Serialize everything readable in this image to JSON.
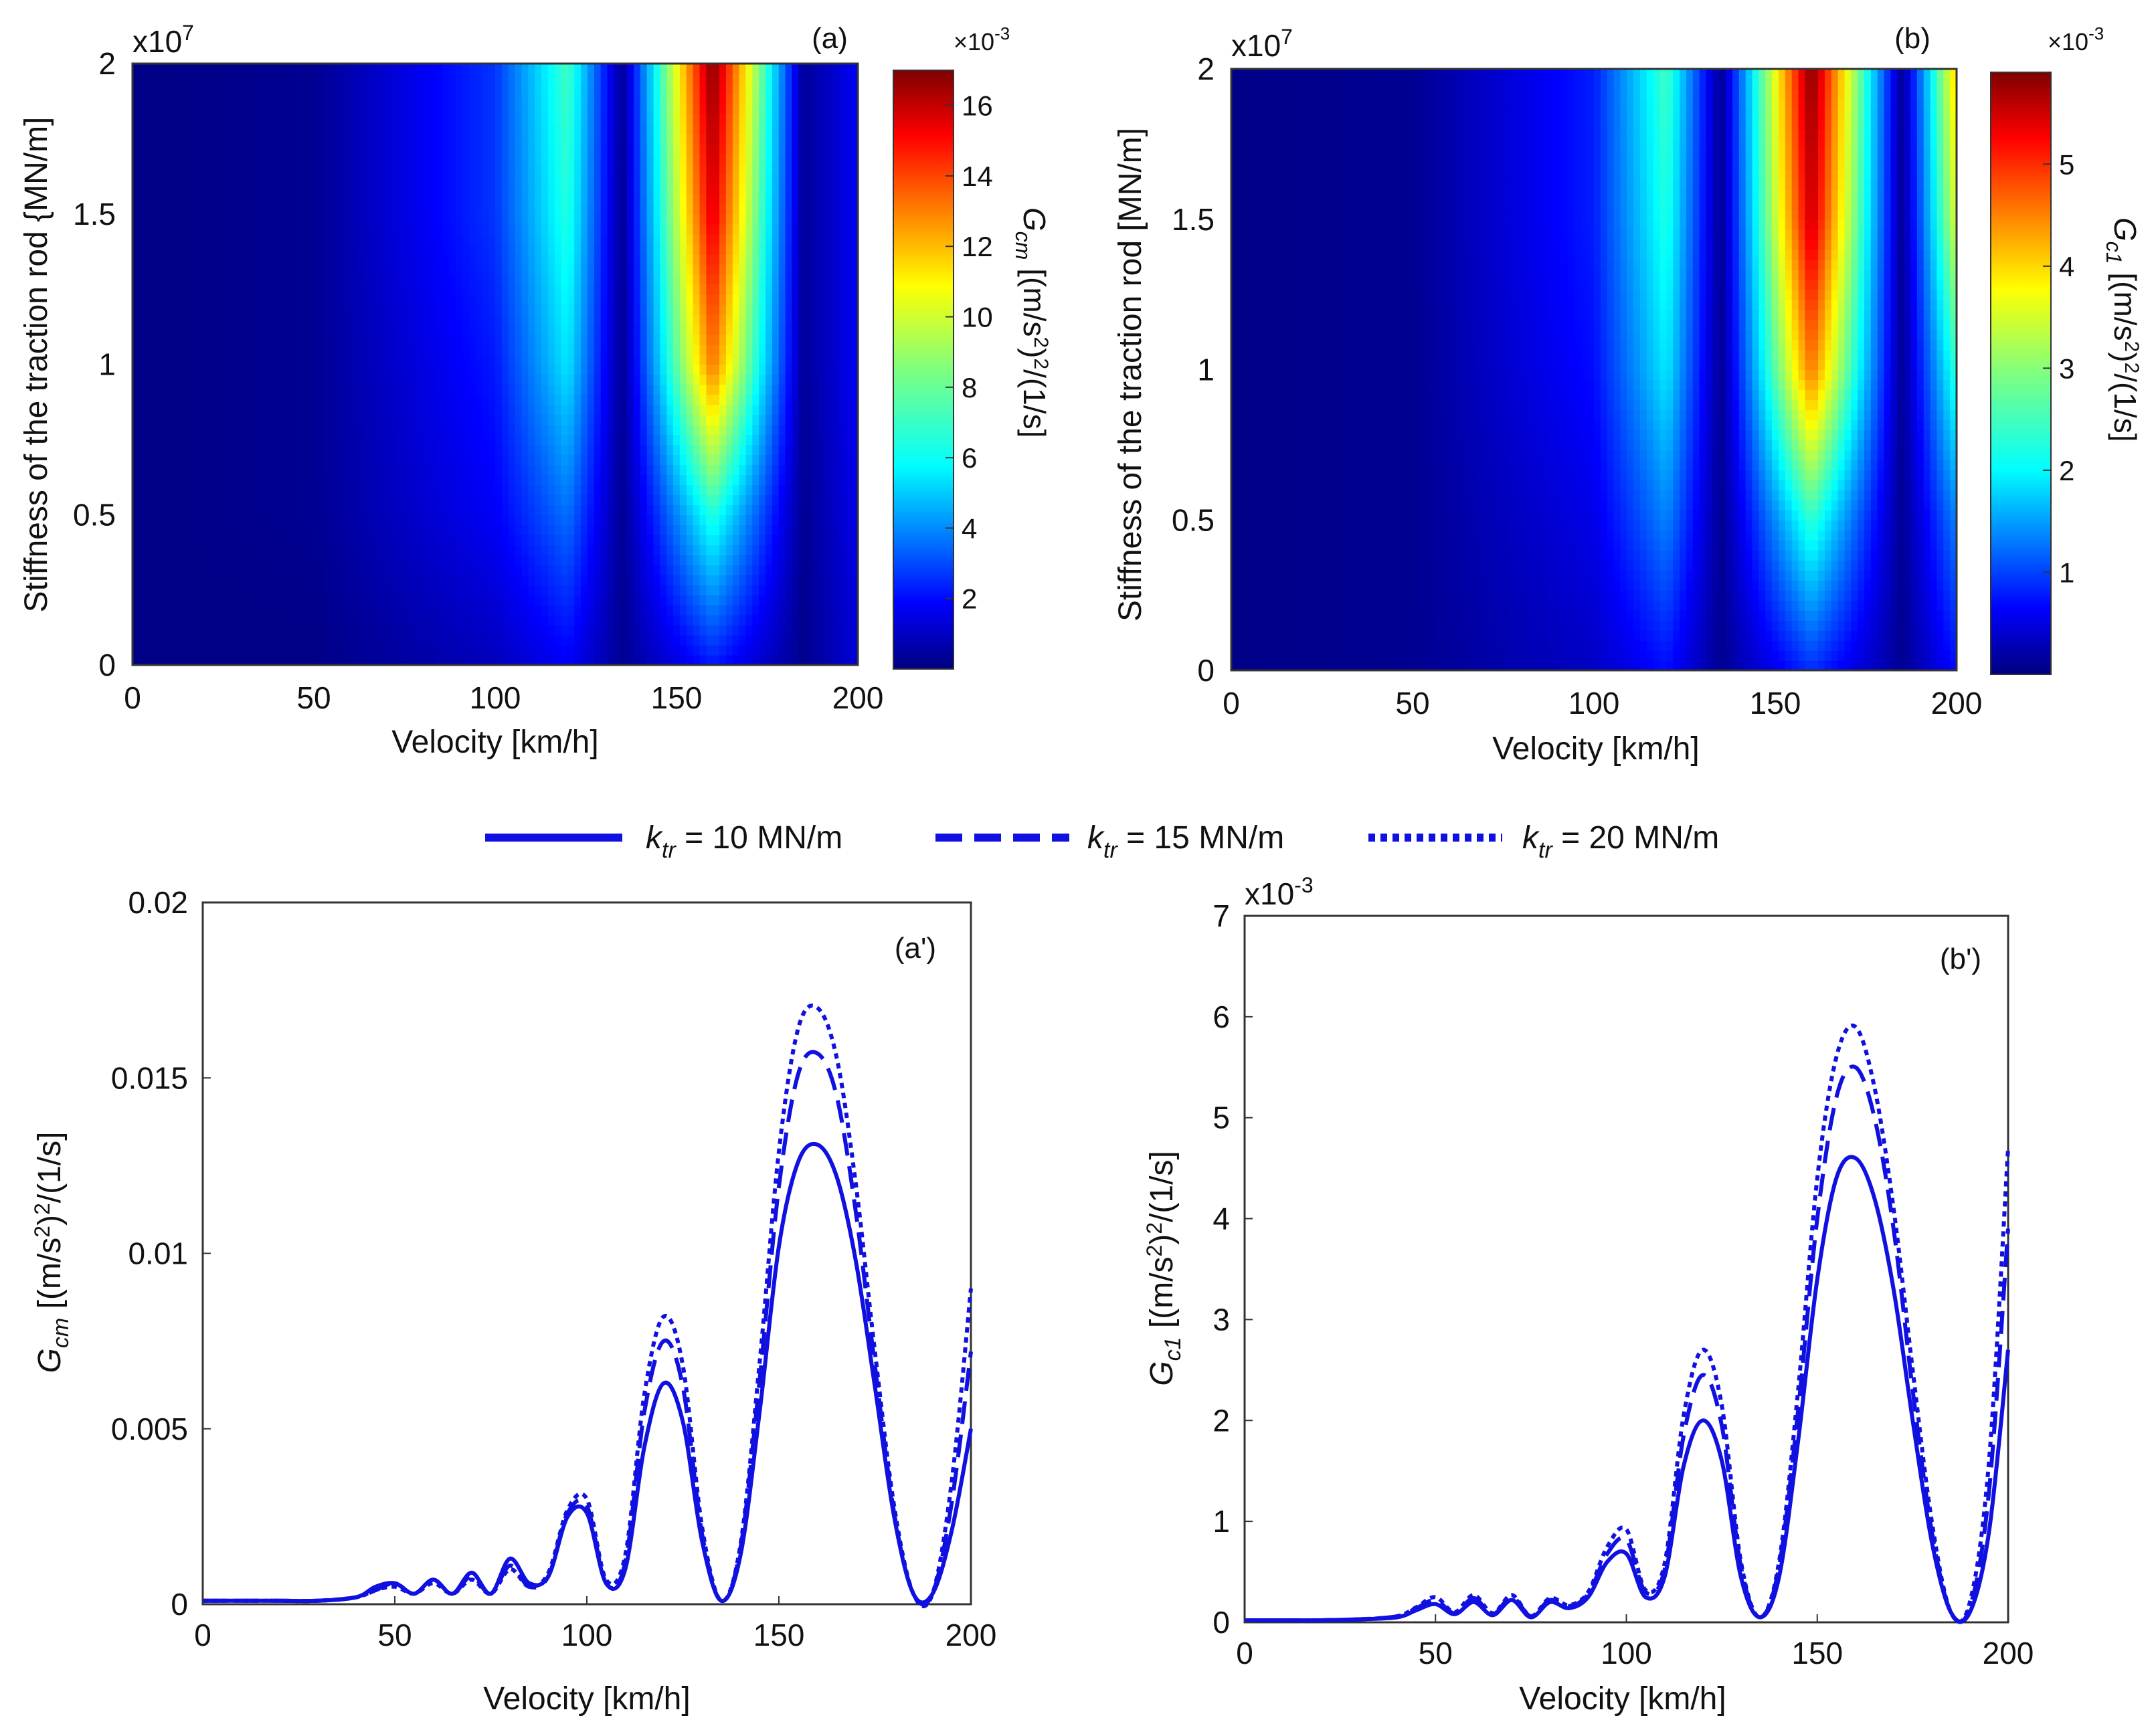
{
  "figure": {
    "colormap": "jet",
    "line_color": "#1010e0",
    "legend": {
      "placement": "center, between top and bottom rows",
      "entries": [
        {
          "symbol": "k",
          "subscript": "tr",
          "suffix": " = 10 MN/m",
          "style": "solid"
        },
        {
          "symbol": "k",
          "subscript": "tr",
          "suffix": " = 15 MN/m",
          "style": "dashed"
        },
        {
          "symbol": "k",
          "subscript": "tr",
          "suffix": " = 20 MN/m",
          "style": "dotted"
        }
      ]
    }
  },
  "panels": {
    "a": {
      "panel_label": "(a)",
      "exponent_label": "x10",
      "exponent_power": "7",
      "xlabel": "Velocity [km/h]",
      "ylabel": "Stiffness of the traction rod {MN/m]",
      "xticks": [
        "0",
        "50",
        "100",
        "150",
        "200"
      ],
      "yticks": [
        "0",
        "0.5",
        "1",
        "1.5",
        "2"
      ],
      "colorbar": {
        "multiplier_base": "×10",
        "multiplier_power": "-3",
        "label_symbol": "G",
        "label_sub": "cm",
        "label_units": " [(m/s",
        "label_units_sup": "2",
        "label_units_mid": ")",
        "label_units_sup2": "2",
        "label_units_end": "/(1/s]",
        "ticks": [
          "2",
          "4",
          "6",
          "8",
          "10",
          "12",
          "14",
          "16"
        ]
      }
    },
    "b": {
      "panel_label": "(b)",
      "exponent_label": "x10",
      "exponent_power": "7",
      "xlabel": "Velocity [km/h]",
      "ylabel": "Stiffness of the traction rod [MN/m]",
      "xticks": [
        "0",
        "50",
        "100",
        "150",
        "200"
      ],
      "yticks": [
        "0",
        "0.5",
        "1",
        "1.5",
        "2"
      ],
      "colorbar": {
        "multiplier_base": "×10",
        "multiplier_power": "-3",
        "label_symbol": "G",
        "label_sub": "c1",
        "label_units": " [(m/s",
        "label_units_sup": "2",
        "label_units_mid": ")",
        "label_units_sup2": "2",
        "label_units_end": "/(1/s]",
        "ticks": [
          "1",
          "2",
          "3",
          "4",
          "5"
        ]
      }
    },
    "a_prime": {
      "panel_label": "(a')",
      "xlabel": "Velocity [km/h]",
      "ylabel_symbol": "G",
      "ylabel_sub": "cm",
      "ylabel_units": " [(m/s",
      "ylabel_units_sup": "2",
      "ylabel_units_mid": ")",
      "ylabel_units_sup2": "2",
      "ylabel_units_end": "/(1/s]",
      "xticks": [
        "0",
        "50",
        "100",
        "150",
        "200"
      ],
      "yticks": [
        "0",
        "0.005",
        "0.01",
        "0.015",
        "0.02"
      ]
    },
    "b_prime": {
      "panel_label": "(b')",
      "exponent_label": "x10",
      "exponent_power": "-3",
      "xlabel": "Velocity [km/h]",
      "ylabel_symbol": "G",
      "ylabel_sub": "c1",
      "ylabel_units": " [(m/s",
      "ylabel_units_sup": "2",
      "ylabel_units_mid": ")",
      "ylabel_units_sup2": "2",
      "ylabel_units_end": "/(1/s]",
      "xticks": [
        "0",
        "50",
        "100",
        "150",
        "200"
      ],
      "yticks": [
        "0",
        "1",
        "2",
        "3",
        "4",
        "5",
        "6",
        "7"
      ]
    }
  },
  "chart_data": [
    {
      "id": "a",
      "type": "heatmap",
      "x_range": [
        0,
        200
      ],
      "y_range": [
        0,
        20000000
      ],
      "y_multiplier": "x10^7",
      "colorbar_range": [
        0,
        0.017
      ],
      "colorbar_multiplier": "x10^-3",
      "colormap": "jet",
      "x": [
        0,
        50,
        100,
        120,
        135,
        160,
        185,
        200
      ],
      "y": [
        0,
        5000000,
        10000000,
        15000000,
        20000000
      ],
      "values": [
        [
          0.0001,
          0.0001,
          0.001,
          0.002,
          0.0003,
          0.0025,
          0.0002,
          0.0015
        ],
        [
          0.0001,
          0.0003,
          0.002,
          0.004,
          0.0003,
          0.007,
          0.0003,
          0.0018
        ],
        [
          0.0001,
          0.0003,
          0.0025,
          0.006,
          0.0003,
          0.013,
          0.0004,
          0.002
        ],
        [
          0.0001,
          0.0003,
          0.003,
          0.007,
          0.0003,
          0.0155,
          0.0004,
          0.002
        ],
        [
          0.0001,
          0.0003,
          0.003,
          0.0075,
          0.0003,
          0.017,
          0.0004,
          0.002
        ]
      ]
    },
    {
      "id": "b",
      "type": "heatmap",
      "x_range": [
        0,
        200
      ],
      "y_range": [
        0,
        20000000
      ],
      "y_multiplier": "x10^7",
      "colorbar_range": [
        0,
        0.0059
      ],
      "colorbar_multiplier": "x10^-3",
      "colormap": "jet",
      "x": [
        0,
        50,
        100,
        120,
        135,
        160,
        185,
        200
      ],
      "y": [
        0,
        5000000,
        10000000,
        15000000,
        20000000
      ],
      "values": [
        [
          5e-05,
          0.0001,
          0.0004,
          0.0008,
          0.0001,
          0.001,
          0.0001,
          0.0008
        ],
        [
          5e-05,
          0.0001,
          0.0006,
          0.0015,
          0.0001,
          0.0025,
          0.0001,
          0.0015
        ],
        [
          5e-05,
          0.0001,
          0.0008,
          0.0021,
          0.0001,
          0.0045,
          0.0001,
          0.0025
        ],
        [
          5e-05,
          0.0001,
          0.0009,
          0.0024,
          0.0001,
          0.0055,
          0.0001,
          0.0035
        ],
        [
          5e-05,
          0.0001,
          0.0009,
          0.0026,
          0.0001,
          0.0059,
          0.0001,
          0.004
        ]
      ]
    },
    {
      "id": "a_prime",
      "type": "line",
      "xlim": [
        0,
        200
      ],
      "ylim": [
        0,
        0.02
      ],
      "x": [
        0,
        10,
        20,
        30,
        40,
        45,
        50,
        55,
        60,
        65,
        70,
        75,
        80,
        85,
        90,
        95,
        100,
        105,
        110,
        115,
        120,
        125,
        130,
        135,
        140,
        145,
        150,
        155,
        160,
        165,
        170,
        175,
        180,
        185,
        190,
        195,
        200
      ],
      "series": [
        {
          "name": "k_tr = 10 MN/m",
          "style": "solid",
          "values": [
            0.0001,
            0.0001,
            0.0001,
            0.0001,
            0.0002,
            0.0005,
            0.0006,
            0.0003,
            0.0007,
            0.0003,
            0.0009,
            0.0003,
            0.0013,
            0.0006,
            0.0008,
            0.0025,
            0.0026,
            0.0006,
            0.001,
            0.0045,
            0.0063,
            0.0052,
            0.0018,
            0.0001,
            0.0014,
            0.0055,
            0.0102,
            0.0126,
            0.0131,
            0.0122,
            0.0098,
            0.0062,
            0.0025,
            0.0003,
            0.0003,
            0.0021,
            0.005
          ]
        },
        {
          "name": "k_tr = 15 MN/m",
          "style": "dashed",
          "values": [
            0.0001,
            0.0001,
            0.0001,
            0.0001,
            0.0002,
            0.0004,
            0.0006,
            0.0003,
            0.0007,
            0.0003,
            0.0008,
            0.0003,
            0.0011,
            0.0005,
            0.0008,
            0.0026,
            0.0028,
            0.0006,
            0.0012,
            0.0055,
            0.0075,
            0.0062,
            0.002,
            0.0001,
            0.0016,
            0.0064,
            0.0119,
            0.0151,
            0.0157,
            0.0145,
            0.0112,
            0.0068,
            0.0026,
            0.0003,
            0.0003,
            0.0029,
            0.0072
          ]
        },
        {
          "name": "k_tr = 20 MN/m",
          "style": "dotted",
          "values": [
            0.0001,
            0.0001,
            0.0001,
            0.0001,
            0.0002,
            0.0004,
            0.0005,
            0.0003,
            0.0006,
            0.0003,
            0.0007,
            0.0003,
            0.001,
            0.0005,
            0.0009,
            0.0027,
            0.003,
            0.0007,
            0.0014,
            0.006,
            0.0082,
            0.0068,
            0.0022,
            0.0001,
            0.0017,
            0.0069,
            0.0129,
            0.0164,
            0.017,
            0.0156,
            0.012,
            0.0072,
            0.0028,
            0.0003,
            0.0003,
            0.0035,
            0.009
          ]
        }
      ]
    },
    {
      "id": "b_prime",
      "type": "line",
      "xlim": [
        0,
        200
      ],
      "ylim": [
        0,
        7
      ],
      "y_multiplier": "x10^-3",
      "x": [
        0,
        10,
        20,
        30,
        40,
        45,
        50,
        55,
        60,
        65,
        70,
        75,
        80,
        85,
        90,
        95,
        100,
        105,
        110,
        115,
        120,
        125,
        130,
        135,
        140,
        145,
        150,
        155,
        160,
        165,
        170,
        175,
        180,
        185,
        190,
        195,
        200
      ],
      "series": [
        {
          "name": "k_tr = 10 MN/m",
          "style": "solid",
          "values": [
            0.02,
            0.02,
            0.02,
            0.03,
            0.05,
            0.12,
            0.18,
            0.08,
            0.2,
            0.07,
            0.22,
            0.05,
            0.2,
            0.14,
            0.25,
            0.6,
            0.68,
            0.25,
            0.45,
            1.55,
            2.0,
            1.6,
            0.45,
            0.05,
            0.45,
            1.8,
            3.4,
            4.4,
            4.6,
            4.2,
            3.3,
            2.0,
            0.8,
            0.1,
            0.1,
            0.9,
            2.7
          ]
        },
        {
          "name": "k_tr = 15 MN/m",
          "style": "dashed",
          "values": [
            0.02,
            0.02,
            0.02,
            0.03,
            0.06,
            0.14,
            0.22,
            0.09,
            0.24,
            0.08,
            0.25,
            0.06,
            0.22,
            0.16,
            0.28,
            0.68,
            0.82,
            0.3,
            0.52,
            1.85,
            2.45,
            1.95,
            0.55,
            0.05,
            0.55,
            2.1,
            4.0,
            5.2,
            5.5,
            5.0,
            3.9,
            2.3,
            0.9,
            0.1,
            0.15,
            1.3,
            3.9
          ]
        },
        {
          "name": "k_tr = 20 MN/m",
          "style": "dotted",
          "values": [
            0.02,
            0.02,
            0.02,
            0.03,
            0.06,
            0.15,
            0.25,
            0.1,
            0.27,
            0.09,
            0.27,
            0.06,
            0.24,
            0.17,
            0.3,
            0.75,
            0.92,
            0.32,
            0.58,
            2.05,
            2.7,
            2.15,
            0.6,
            0.05,
            0.6,
            2.3,
            4.4,
            5.6,
            5.9,
            5.3,
            4.1,
            2.5,
            1.0,
            0.1,
            0.2,
            1.6,
            4.7
          ]
        }
      ]
    }
  ]
}
